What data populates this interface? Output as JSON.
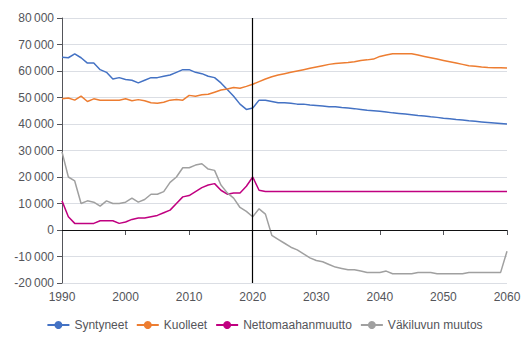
{
  "chart_data": {
    "type": "line",
    "title": "",
    "x": [
      1990,
      1991,
      1992,
      1993,
      1994,
      1995,
      1996,
      1997,
      1998,
      1999,
      2000,
      2001,
      2002,
      2003,
      2004,
      2005,
      2006,
      2007,
      2008,
      2009,
      2010,
      2011,
      2012,
      2013,
      2014,
      2015,
      2016,
      2017,
      2018,
      2019,
      2020,
      2021,
      2022,
      2023,
      2024,
      2025,
      2026,
      2027,
      2028,
      2029,
      2030,
      2031,
      2032,
      2033,
      2034,
      2035,
      2036,
      2037,
      2038,
      2039,
      2040,
      2041,
      2042,
      2043,
      2044,
      2045,
      2046,
      2047,
      2048,
      2049,
      2050,
      2051,
      2052,
      2053,
      2054,
      2055,
      2056,
      2057,
      2058,
      2059,
      2060
    ],
    "series": [
      {
        "name": "Syntyneet",
        "color": "#4472C4",
        "values": [
          65200,
          65000,
          66500,
          65000,
          63000,
          63000,
          60500,
          59500,
          57000,
          57500,
          56800,
          56500,
          55500,
          56500,
          57500,
          57500,
          58000,
          58500,
          59500,
          60500,
          60500,
          59500,
          59000,
          58000,
          57500,
          55500,
          53000,
          50500,
          47500,
          45500,
          46000,
          49000,
          49000,
          48500,
          48000,
          48000,
          47800,
          47500,
          47500,
          47200,
          47000,
          46800,
          46500,
          46500,
          46200,
          46000,
          45800,
          45500,
          45200,
          45000,
          44800,
          44500,
          44200,
          44000,
          43800,
          43500,
          43200,
          43000,
          42700,
          42500,
          42200,
          42000,
          41700,
          41500,
          41200,
          41000,
          40800,
          40600,
          40400,
          40200,
          40000
        ]
      },
      {
        "name": "Kuolleet",
        "color": "#ED7D31",
        "values": [
          49500,
          49800,
          49000,
          50500,
          48500,
          49500,
          49000,
          49000,
          49000,
          49000,
          49500,
          48800,
          49200,
          48800,
          48000,
          47800,
          48200,
          49000,
          49200,
          49000,
          50800,
          50500,
          51000,
          51200,
          52000,
          52800,
          53200,
          53800,
          53500,
          54200,
          55000,
          56000,
          57000,
          57800,
          58500,
          59000,
          59500,
          60000,
          60500,
          61000,
          61500,
          62000,
          62500,
          62800,
          63000,
          63200,
          63500,
          64000,
          64200,
          64500,
          65500,
          66000,
          66500,
          66500,
          66500,
          66500,
          66000,
          65500,
          65000,
          64500,
          64000,
          63500,
          63000,
          62500,
          62000,
          61800,
          61500,
          61300,
          61200,
          61200,
          61100
        ]
      },
      {
        "name": "Nettomaahanmuutto",
        "color": "#C00080",
        "values": [
          11000,
          5000,
          2500,
          2500,
          2500,
          2500,
          3500,
          3500,
          3500,
          2500,
          3000,
          4000,
          4500,
          4500,
          5000,
          5500,
          6500,
          7500,
          10000,
          12500,
          13000,
          14500,
          16000,
          17000,
          17500,
          15000,
          13500,
          14000,
          14000,
          16500,
          20000,
          15000,
          14500,
          14500,
          14500,
          14500,
          14500,
          14500,
          14500,
          14500,
          14500,
          14500,
          14500,
          14500,
          14500,
          14500,
          14500,
          14500,
          14500,
          14500,
          14500,
          14500,
          14500,
          14500,
          14500,
          14500,
          14500,
          14500,
          14500,
          14500,
          14500,
          14500,
          14500,
          14500,
          14500,
          14500,
          14500,
          14500,
          14500,
          14500,
          14500
        ]
      },
      {
        "name": "Väkiluvun muutos",
        "color": "#A0A0A0",
        "values": [
          29500,
          20000,
          18500,
          10000,
          11000,
          10500,
          9000,
          11000,
          10000,
          10000,
          10500,
          12000,
          10500,
          11500,
          13500,
          13500,
          14500,
          18000,
          20000,
          23500,
          23500,
          24500,
          25000,
          23000,
          22500,
          17000,
          14000,
          12000,
          8500,
          7000,
          5000,
          8000,
          6000,
          -2000,
          -3500,
          -5000,
          -6500,
          -7500,
          -9000,
          -10500,
          -11500,
          -12000,
          -13000,
          -14000,
          -14500,
          -15000,
          -15000,
          -15500,
          -16000,
          -16000,
          -16000,
          -15500,
          -16500,
          -16500,
          -16500,
          -16500,
          -16000,
          -16000,
          -16000,
          -16500,
          -16500,
          -16500,
          -16500,
          -16500,
          -16000,
          -16000,
          -16000,
          -16000,
          -16000,
          -16000,
          -8000
        ]
      }
    ],
    "xlim": [
      1990,
      2060
    ],
    "xticks": [
      1990,
      2000,
      2010,
      2020,
      2030,
      2040,
      2050,
      2060
    ],
    "ylim": [
      -20000,
      80000
    ],
    "yticks": [
      {
        "value": -20000,
        "label": "-20 000"
      },
      {
        "value": -10000,
        "label": "-10 000"
      },
      0,
      {
        "value": 10000,
        "label": "10 000"
      },
      {
        "value": 20000,
        "label": "20 000"
      },
      {
        "value": 30000,
        "label": "30 000"
      },
      {
        "value": 40000,
        "label": "40 000"
      },
      {
        "value": 50000,
        "label": "50 000"
      },
      {
        "value": 60000,
        "label": "60 000"
      },
      {
        "value": 70000,
        "label": "70 000"
      },
      {
        "value": 80000,
        "label": "80 000"
      }
    ],
    "vline": 2020,
    "hline": 0,
    "grid": true,
    "legend": "bottom"
  }
}
